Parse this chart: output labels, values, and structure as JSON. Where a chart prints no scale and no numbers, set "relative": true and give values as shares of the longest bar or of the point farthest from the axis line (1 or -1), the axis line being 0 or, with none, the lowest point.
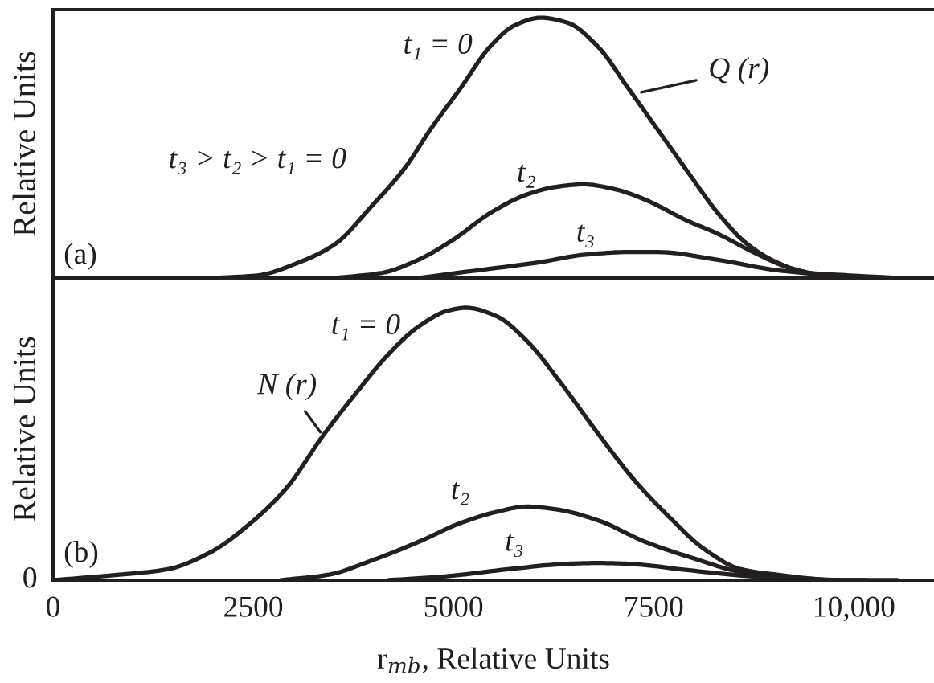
{
  "chart_data": [
    {
      "type": "line",
      "relative": true,
      "ylabel": "Relative Units",
      "xlim": [
        0,
        11000
      ],
      "tick_labels": false,
      "line_style": "solid",
      "annotations": [
        "(a)",
        "t₃ > t₂ > t₁ = 0",
        {
          "text": "Q (r)",
          "x": 7290,
          "y": 0.71
        }
      ],
      "series": [
        {
          "name": "t₁ = 0",
          "color": "#231f20",
          "x": [
            2020,
            2550,
            3070,
            3520,
            3960,
            4410,
            4710,
            5090,
            5460,
            5760,
            6090,
            6430,
            6800,
            7180,
            7550,
            7920,
            8300,
            8670,
            9040,
            9420,
            9940,
            10540
          ],
          "values": [
            0,
            0.01,
            0.06,
            0.13,
            0.27,
            0.43,
            0.57,
            0.73,
            0.89,
            0.97,
            1.0,
            0.98,
            0.89,
            0.73,
            0.57,
            0.41,
            0.25,
            0.13,
            0.06,
            0.02,
            0.01,
            0
          ]
        },
        {
          "name": "t₂",
          "color": "#231f20",
          "x": [
            3520,
            4110,
            4560,
            5010,
            5460,
            5910,
            6280,
            6620,
            7030,
            7400,
            7920,
            8300,
            8740,
            9190,
            9640,
            10160
          ],
          "values": [
            0,
            0.02,
            0.07,
            0.15,
            0.25,
            0.32,
            0.35,
            0.36,
            0.34,
            0.3,
            0.22,
            0.17,
            0.1,
            0.04,
            0.01,
            0
          ]
        },
        {
          "name": "t₃",
          "color": "#231f20",
          "x": [
            4560,
            5310,
            6060,
            6650,
            7180,
            7550,
            8300,
            9040,
            9790,
            10540
          ],
          "values": [
            0,
            0.03,
            0.06,
            0.09,
            0.1,
            0.1,
            0.07,
            0.03,
            0.01,
            0
          ]
        }
      ]
    },
    {
      "type": "line",
      "relative": true,
      "ylabel": "Relative Units",
      "xlabel": "r$_{mb}$, Relative Units",
      "xlim": [
        0,
        11000
      ],
      "xticks": [
        0,
        2500,
        5000,
        7500,
        {
          "value": 10000,
          "label": "10,000"
        }
      ],
      "tick_labels": "x",
      "line_style": "solid",
      "annotations": [
        "(b)",
        {
          "text": "N (r)",
          "x": 3370,
          "y": 0.53
        },
        {
          "text": "0",
          "x": 0,
          "y": 0
        }
      ],
      "series": [
        {
          "name": "t₁ = 0",
          "color": "#231f20",
          "x": [
            0,
            830,
            1430,
            1950,
            2470,
            2920,
            3370,
            3820,
            4190,
            4560,
            4940,
            5160,
            5530,
            5910,
            6350,
            6800,
            7250,
            7700,
            8150,
            8590,
            9040,
            9790,
            10540
          ],
          "values": [
            0,
            0.02,
            0.04,
            0.1,
            0.21,
            0.34,
            0.53,
            0.7,
            0.83,
            0.93,
            0.99,
            1.0,
            0.97,
            0.88,
            0.72,
            0.54,
            0.37,
            0.23,
            0.11,
            0.04,
            0.02,
            0,
            0
          ]
        },
        {
          "name": "t₂",
          "color": "#231f20",
          "x": [
            2840,
            3440,
            3960,
            4560,
            5090,
            5530,
            5910,
            6280,
            6800,
            7400,
            8000,
            8590,
            9190,
            9790
          ],
          "values": [
            0,
            0.02,
            0.07,
            0.14,
            0.21,
            0.25,
            0.27,
            0.26,
            0.22,
            0.14,
            0.08,
            0.03,
            0.01,
            0
          ]
        },
        {
          "name": "t₃",
          "color": "#231f20",
          "x": [
            4190,
            4940,
            5680,
            6430,
            6800,
            7180,
            7920,
            8670,
            9420,
            10160
          ],
          "values": [
            0,
            0.015,
            0.04,
            0.06,
            0.063,
            0.06,
            0.037,
            0.015,
            0.002,
            0
          ]
        }
      ]
    }
  ]
}
